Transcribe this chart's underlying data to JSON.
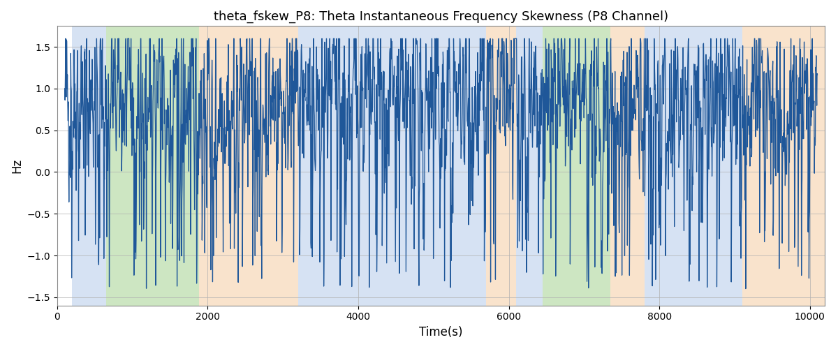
{
  "title": "theta_fskew_P8: Theta Instantaneous Frequency Skewness (P8 Channel)",
  "xlabel": "Time(s)",
  "ylabel": "Hz",
  "xlim": [
    0,
    10200
  ],
  "ylim": [
    -1.6,
    1.75
  ],
  "yticks": [
    -1.5,
    -1.0,
    -0.5,
    0.0,
    0.5,
    1.0,
    1.5
  ],
  "xticks": [
    0,
    2000,
    4000,
    6000,
    8000,
    10000
  ],
  "line_color": "#1f5799",
  "line_width": 0.9,
  "background_color": "#ffffff",
  "grid_color": "#b0b0b0",
  "segments": [
    {
      "start": 200,
      "end": 650,
      "color": "#aec6e8",
      "alpha": 0.5
    },
    {
      "start": 650,
      "end": 1880,
      "color": "#90c878",
      "alpha": 0.45
    },
    {
      "start": 1880,
      "end": 3200,
      "color": "#f5c89a",
      "alpha": 0.5
    },
    {
      "start": 3200,
      "end": 3900,
      "color": "#aec6e8",
      "alpha": 0.5
    },
    {
      "start": 3900,
      "end": 5700,
      "color": "#aec6e8",
      "alpha": 0.5
    },
    {
      "start": 5700,
      "end": 6100,
      "color": "#f5c89a",
      "alpha": 0.5
    },
    {
      "start": 6100,
      "end": 6450,
      "color": "#aec6e8",
      "alpha": 0.5
    },
    {
      "start": 6450,
      "end": 7350,
      "color": "#90c878",
      "alpha": 0.45
    },
    {
      "start": 7350,
      "end": 7800,
      "color": "#f5c89a",
      "alpha": 0.5
    },
    {
      "start": 7800,
      "end": 9100,
      "color": "#aec6e8",
      "alpha": 0.5
    },
    {
      "start": 9100,
      "end": 10200,
      "color": "#f5c89a",
      "alpha": 0.5
    }
  ],
  "seed": 42,
  "n_points": 2500
}
